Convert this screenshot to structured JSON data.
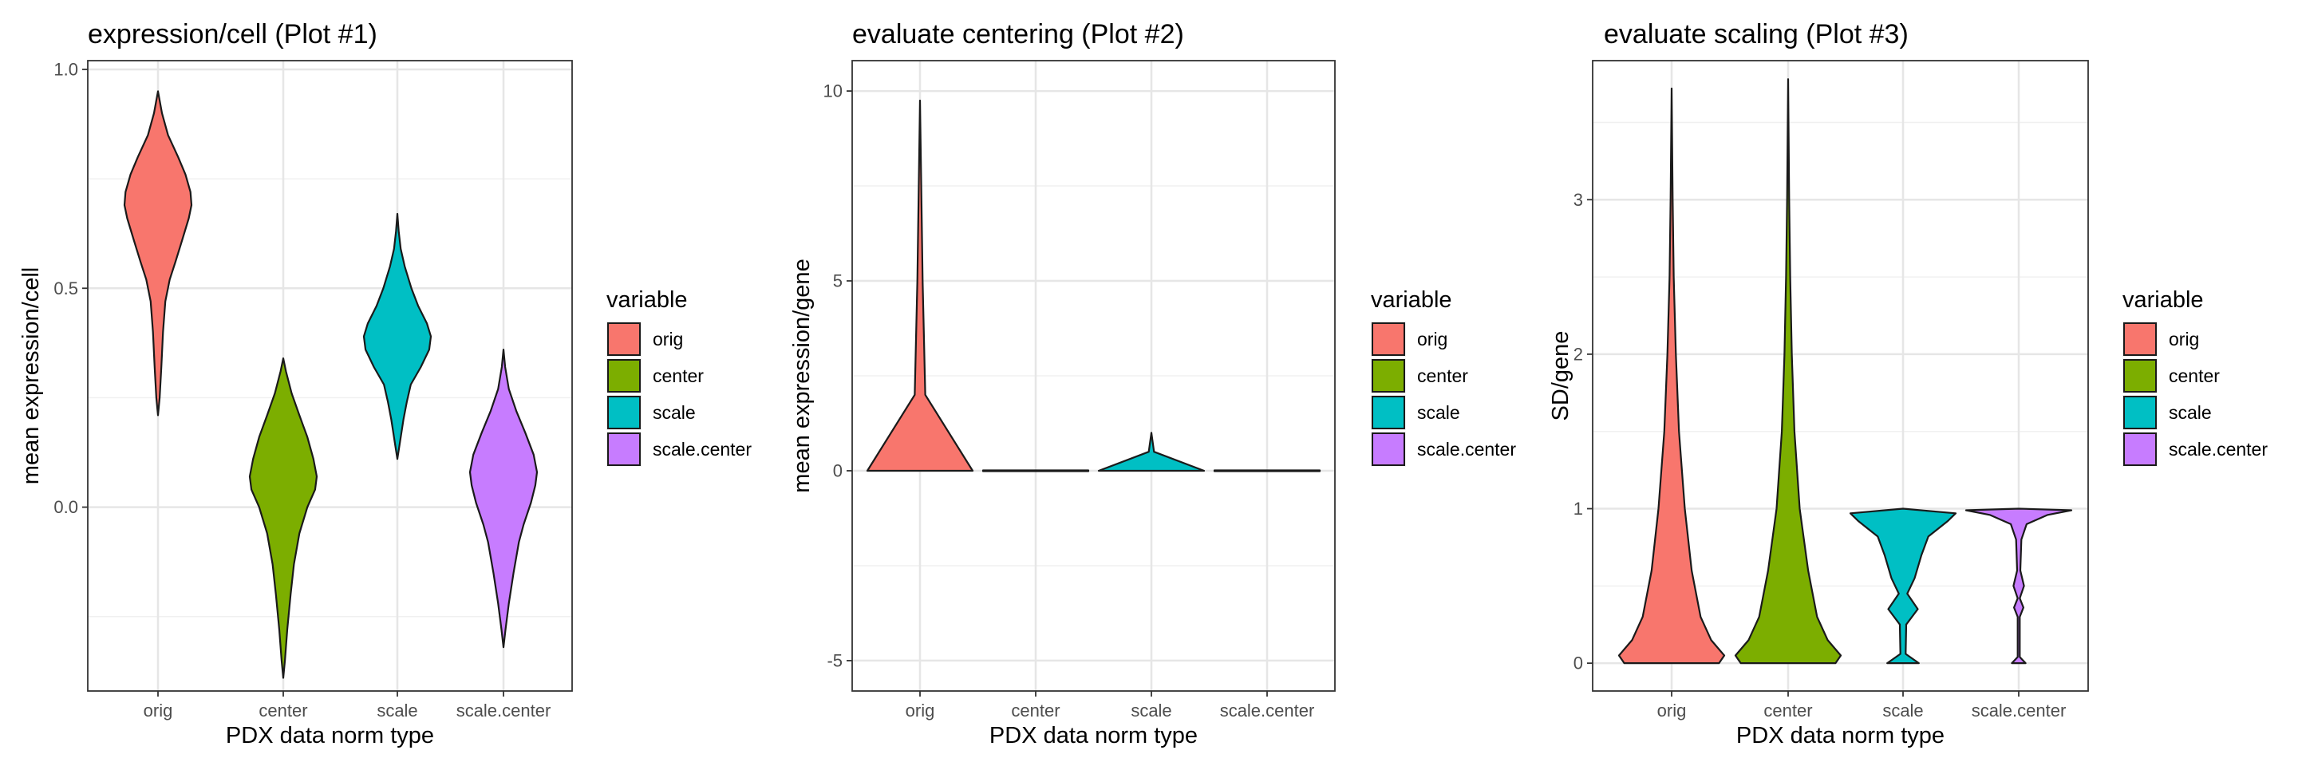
{
  "chart_data": [
    {
      "type": "violin",
      "title": "expression/cell (Plot #1)",
      "xlabel": "PDX data norm type",
      "ylabel": "mean expression/cell",
      "categories": [
        "orig",
        "center",
        "scale",
        "scale.center"
      ],
      "ylim": [
        -0.42,
        1.02
      ],
      "yticks": [
        0.0,
        0.5,
        1.0
      ],
      "ytick_labels": [
        "0.0",
        "0.5",
        "1.0"
      ],
      "series": [
        {
          "name": "orig",
          "color": "#F8766D",
          "profile": [
            [
              0.21,
              0
            ],
            [
              0.25,
              0.05
            ],
            [
              0.32,
              0.1
            ],
            [
              0.4,
              0.15
            ],
            [
              0.47,
              0.22
            ],
            [
              0.52,
              0.35
            ],
            [
              0.56,
              0.52
            ],
            [
              0.6,
              0.68
            ],
            [
              0.63,
              0.8
            ],
            [
              0.66,
              0.92
            ],
            [
              0.69,
              1.0
            ],
            [
              0.72,
              0.97
            ],
            [
              0.76,
              0.82
            ],
            [
              0.8,
              0.6
            ],
            [
              0.85,
              0.3
            ],
            [
              0.9,
              0.12
            ],
            [
              0.95,
              0
            ]
          ]
        },
        {
          "name": "center",
          "color": "#7CAE00",
          "profile": [
            [
              -0.39,
              0
            ],
            [
              -0.35,
              0.05
            ],
            [
              -0.28,
              0.12
            ],
            [
              -0.2,
              0.22
            ],
            [
              -0.13,
              0.32
            ],
            [
              -0.06,
              0.48
            ],
            [
              0.0,
              0.72
            ],
            [
              0.04,
              0.95
            ],
            [
              0.07,
              1.0
            ],
            [
              0.11,
              0.9
            ],
            [
              0.16,
              0.72
            ],
            [
              0.21,
              0.48
            ],
            [
              0.26,
              0.25
            ],
            [
              0.31,
              0.08
            ],
            [
              0.34,
              0
            ]
          ]
        },
        {
          "name": "scale",
          "color": "#00BFC4",
          "profile": [
            [
              0.11,
              0
            ],
            [
              0.15,
              0.08
            ],
            [
              0.2,
              0.18
            ],
            [
              0.24,
              0.28
            ],
            [
              0.28,
              0.4
            ],
            [
              0.32,
              0.7
            ],
            [
              0.36,
              0.95
            ],
            [
              0.39,
              1.0
            ],
            [
              0.42,
              0.88
            ],
            [
              0.46,
              0.62
            ],
            [
              0.5,
              0.42
            ],
            [
              0.55,
              0.22
            ],
            [
              0.59,
              0.1
            ],
            [
              0.63,
              0.04
            ],
            [
              0.67,
              0
            ]
          ]
        },
        {
          "name": "scale.center",
          "color": "#C77CFF",
          "profile": [
            [
              -0.32,
              0
            ],
            [
              -0.28,
              0.06
            ],
            [
              -0.22,
              0.16
            ],
            [
              -0.15,
              0.3
            ],
            [
              -0.08,
              0.46
            ],
            [
              -0.04,
              0.6
            ],
            [
              0.01,
              0.82
            ],
            [
              0.05,
              0.95
            ],
            [
              0.08,
              1.0
            ],
            [
              0.12,
              0.9
            ],
            [
              0.17,
              0.65
            ],
            [
              0.22,
              0.38
            ],
            [
              0.27,
              0.16
            ],
            [
              0.32,
              0.05
            ],
            [
              0.36,
              0
            ]
          ]
        }
      ]
    },
    {
      "type": "violin",
      "title": "evaluate centering (Plot #2)",
      "xlabel": "PDX data norm type",
      "ylabel": "mean expression/gene",
      "categories": [
        "orig",
        "center",
        "scale",
        "scale.center"
      ],
      "ylim": [
        -5.8,
        10.8
      ],
      "yticks": [
        -5,
        0,
        5,
        10
      ],
      "ytick_labels": [
        "-5",
        "0",
        "5",
        "10"
      ],
      "series": [
        {
          "name": "orig",
          "color": "#F8766D",
          "profile": [
            [
              0,
              1
            ],
            [
              2,
              0.1
            ],
            [
              5,
              0.05
            ],
            [
              9.75,
              0
            ]
          ]
        },
        {
          "name": "center",
          "color": "#7CAE00",
          "profile": [
            [
              -0.01,
              1
            ],
            [
              0.01,
              1
            ]
          ]
        },
        {
          "name": "scale",
          "color": "#00BFC4",
          "profile": [
            [
              0,
              1
            ],
            [
              0.5,
              0.05
            ],
            [
              1.0,
              0
            ]
          ]
        },
        {
          "name": "scale.center",
          "color": "#C77CFF",
          "profile": [
            [
              -0.01,
              1
            ],
            [
              0.01,
              1
            ]
          ]
        }
      ]
    },
    {
      "type": "violin",
      "title": "evaluate scaling (Plot #3)",
      "xlabel": "PDX data norm type",
      "ylabel": "SD/gene",
      "categories": [
        "orig",
        "center",
        "scale",
        "scale.center"
      ],
      "ylim": [
        -0.18,
        3.9
      ],
      "yticks": [
        0,
        1,
        2,
        3
      ],
      "ytick_labels": [
        "0",
        "1",
        "2",
        "3"
      ],
      "series": [
        {
          "name": "orig",
          "color": "#F8766D",
          "profile": [
            [
              0,
              0.9
            ],
            [
              0.05,
              1.0
            ],
            [
              0.15,
              0.75
            ],
            [
              0.3,
              0.55
            ],
            [
              0.6,
              0.38
            ],
            [
              1.0,
              0.25
            ],
            [
              1.5,
              0.14
            ],
            [
              2.0,
              0.08
            ],
            [
              2.5,
              0.04
            ],
            [
              3.0,
              0.02
            ],
            [
              3.72,
              0
            ]
          ]
        },
        {
          "name": "center",
          "color": "#7CAE00",
          "profile": [
            [
              0,
              0.9
            ],
            [
              0.05,
              1.0
            ],
            [
              0.15,
              0.75
            ],
            [
              0.3,
              0.55
            ],
            [
              0.6,
              0.38
            ],
            [
              1.0,
              0.22
            ],
            [
              1.5,
              0.12
            ],
            [
              2.0,
              0.07
            ],
            [
              2.5,
              0.04
            ],
            [
              3.0,
              0.02
            ],
            [
              3.78,
              0
            ]
          ]
        },
        {
          "name": "scale",
          "color": "#00BFC4",
          "profile": [
            [
              0,
              0.3
            ],
            [
              0.06,
              0.05
            ],
            [
              0.25,
              0.06
            ],
            [
              0.35,
              0.28
            ],
            [
              0.45,
              0.08
            ],
            [
              0.55,
              0.22
            ],
            [
              0.7,
              0.35
            ],
            [
              0.82,
              0.48
            ],
            [
              0.92,
              0.85
            ],
            [
              0.97,
              1.0
            ],
            [
              1.0,
              0
            ]
          ]
        },
        {
          "name": "scale.center",
          "color": "#C77CFF",
          "profile": [
            [
              0,
              0.13
            ],
            [
              0.04,
              0.02
            ],
            [
              0.3,
              0.02
            ],
            [
              0.36,
              0.09
            ],
            [
              0.42,
              0.02
            ],
            [
              0.5,
              0.1
            ],
            [
              0.6,
              0.03
            ],
            [
              0.8,
              0.05
            ],
            [
              0.9,
              0.15
            ],
            [
              0.96,
              0.55
            ],
            [
              0.99,
              1.0
            ],
            [
              1.0,
              0
            ]
          ]
        }
      ]
    }
  ],
  "legend": {
    "title": "variable",
    "items": [
      {
        "label": "orig",
        "color": "#F8766D"
      },
      {
        "label": "center",
        "color": "#7CAE00"
      },
      {
        "label": "scale",
        "color": "#00BFC4"
      },
      {
        "label": "scale.center",
        "color": "#C77CFF"
      }
    ]
  }
}
